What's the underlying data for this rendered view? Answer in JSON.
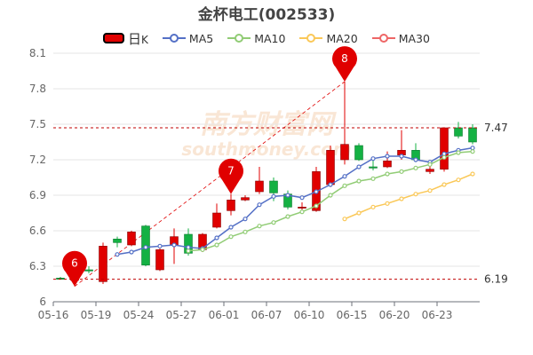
{
  "chart_data": {
    "type": "candlestick",
    "title": "金杯电工(002533)",
    "watermark": {
      "text": "南方财富网",
      "sub": "southmoney.com"
    },
    "legend": [
      {
        "key": "kline",
        "label": "日K",
        "color": "#e00000"
      },
      {
        "key": "ma5",
        "label": "MA5",
        "color": "#5470c6"
      },
      {
        "key": "ma10",
        "label": "MA10",
        "color": "#91cc75"
      },
      {
        "key": "ma20",
        "label": "MA20",
        "color": "#fac858"
      },
      {
        "key": "ma30",
        "label": "MA30",
        "color": "#ee6666"
      }
    ],
    "ylim": [
      6,
      8.1
    ],
    "yticks": [
      "6",
      "6.3",
      "6.6",
      "6.9",
      "7.2",
      "7.5",
      "7.8",
      "8.1"
    ],
    "xtick_labels": [
      {
        "i": 0,
        "label": "05-16"
      },
      {
        "i": 3,
        "label": "05-19"
      },
      {
        "i": 6,
        "label": "05-24"
      },
      {
        "i": 9,
        "label": "05-27"
      },
      {
        "i": 12,
        "label": "06-01"
      },
      {
        "i": 15,
        "label": "06-07"
      },
      {
        "i": 18,
        "label": "06-10"
      },
      {
        "i": 21,
        "label": "06-15"
      },
      {
        "i": 24,
        "label": "06-20"
      },
      {
        "i": 27,
        "label": "06-23"
      }
    ],
    "candles": [
      {
        "o": 6.2,
        "c": 6.19,
        "h": 6.21,
        "l": 6.19
      },
      {
        "o": 6.19,
        "c": 6.19,
        "h": 6.2,
        "l": 6.13
      },
      {
        "o": 6.27,
        "c": 6.26,
        "h": 6.3,
        "l": 6.24
      },
      {
        "o": 6.17,
        "c": 6.47,
        "h": 6.5,
        "l": 6.15
      },
      {
        "o": 6.53,
        "c": 6.5,
        "h": 6.55,
        "l": 6.46
      },
      {
        "o": 6.48,
        "c": 6.59,
        "h": 6.6,
        "l": 6.47
      },
      {
        "o": 6.64,
        "c": 6.31,
        "h": 6.65,
        "l": 6.3
      },
      {
        "o": 6.27,
        "c": 6.44,
        "h": 6.45,
        "l": 6.26
      },
      {
        "o": 6.48,
        "c": 6.55,
        "h": 6.62,
        "l": 6.32
      },
      {
        "o": 6.57,
        "c": 6.41,
        "h": 6.62,
        "l": 6.39
      },
      {
        "o": 6.44,
        "c": 6.57,
        "h": 6.58,
        "l": 6.42
      },
      {
        "o": 6.63,
        "c": 6.75,
        "h": 6.83,
        "l": 6.62
      },
      {
        "o": 6.77,
        "c": 6.86,
        "h": 6.91,
        "l": 6.73
      },
      {
        "o": 6.86,
        "c": 6.88,
        "h": 6.9,
        "l": 6.85
      },
      {
        "o": 6.93,
        "c": 7.02,
        "h": 7.14,
        "l": 6.91
      },
      {
        "o": 7.02,
        "c": 6.92,
        "h": 7.05,
        "l": 6.85
      },
      {
        "o": 6.91,
        "c": 6.8,
        "h": 6.94,
        "l": 6.78
      },
      {
        "o": 6.8,
        "c": 6.8,
        "h": 6.84,
        "l": 6.76
      },
      {
        "o": 6.77,
        "c": 7.1,
        "h": 7.14,
        "l": 6.76
      },
      {
        "o": 6.99,
        "c": 7.28,
        "h": 7.32,
        "l": 6.97
      },
      {
        "o": 7.2,
        "c": 7.33,
        "h": 7.86,
        "l": 7.16
      },
      {
        "o": 7.32,
        "c": 7.2,
        "h": 7.34,
        "l": 7.19
      },
      {
        "o": 7.14,
        "c": 7.13,
        "h": 7.22,
        "l": 7.11
      },
      {
        "o": 7.14,
        "c": 7.19,
        "h": 7.27,
        "l": 7.13
      },
      {
        "o": 7.24,
        "c": 7.28,
        "h": 7.45,
        "l": 7.2
      },
      {
        "o": 7.28,
        "c": 7.2,
        "h": 7.34,
        "l": 7.18
      },
      {
        "o": 7.1,
        "c": 7.12,
        "h": 7.19,
        "l": 7.08
      },
      {
        "o": 7.12,
        "c": 7.47,
        "h": 7.47,
        "l": 7.1
      },
      {
        "o": 7.47,
        "c": 7.4,
        "h": 7.52,
        "l": 7.38
      },
      {
        "o": 7.47,
        "c": 7.35,
        "h": 7.5,
        "l": 7.33
      }
    ],
    "series": [
      {
        "key": "ma5",
        "values": [
          null,
          null,
          null,
          null,
          6.4,
          6.42,
          6.46,
          6.47,
          6.48,
          6.46,
          6.45,
          6.54,
          6.63,
          6.7,
          6.82,
          6.89,
          6.9,
          6.88,
          6.93,
          6.99,
          7.06,
          7.14,
          7.21,
          7.23,
          7.23,
          7.2,
          7.18,
          7.25,
          7.28,
          7.3
        ]
      },
      {
        "key": "ma10",
        "values": [
          null,
          null,
          null,
          null,
          null,
          null,
          null,
          null,
          null,
          6.43,
          6.44,
          6.48,
          6.55,
          6.59,
          6.64,
          6.67,
          6.72,
          6.76,
          6.81,
          6.9,
          6.98,
          7.02,
          7.04,
          7.08,
          7.1,
          7.13,
          7.16,
          7.22,
          7.26,
          7.27
        ]
      },
      {
        "key": "ma20",
        "values": [
          null,
          null,
          null,
          null,
          null,
          null,
          null,
          null,
          null,
          null,
          null,
          null,
          null,
          null,
          null,
          null,
          null,
          null,
          null,
          null,
          6.7,
          6.75,
          6.8,
          6.83,
          6.87,
          6.91,
          6.94,
          6.99,
          7.03,
          7.08
        ]
      }
    ],
    "ref_lines": [
      {
        "value": 7.47,
        "label": "7.47"
      },
      {
        "value": 6.19,
        "label": "6.19"
      }
    ],
    "markers": [
      {
        "i": 1,
        "value": 6.13,
        "label": "6"
      },
      {
        "i": 12,
        "value": 6.91,
        "label": "7"
      },
      {
        "i": 20,
        "value": 7.86,
        "label": "8"
      }
    ]
  }
}
